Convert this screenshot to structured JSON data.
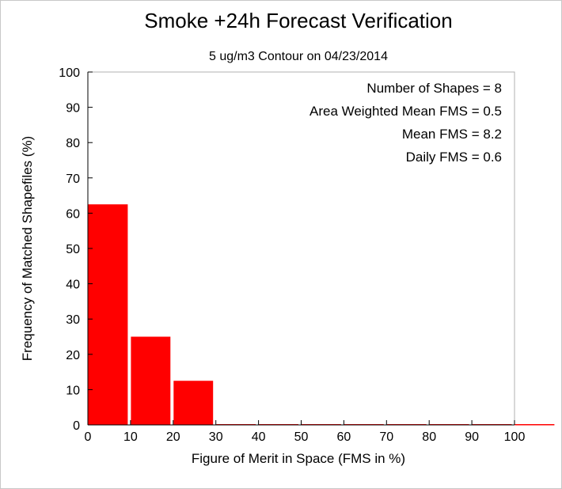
{
  "chart_data": {
    "type": "bar",
    "title": "Smoke +24h Forecast Verification",
    "subtitle": "5 ug/m3 Contour on 04/23/2014",
    "xlabel": "Figure of Merit in Space (FMS in %)",
    "ylabel": "Frequency of Matched Shapefiles (%)",
    "xlim": [
      0,
      100
    ],
    "ylim": [
      0,
      100
    ],
    "xticks": [
      "0",
      "10",
      "20",
      "30",
      "40",
      "50",
      "60",
      "70",
      "80",
      "90",
      "100"
    ],
    "yticks": [
      "0",
      "10",
      "20",
      "30",
      "40",
      "50",
      "60",
      "70",
      "80",
      "90",
      "100"
    ],
    "bin_width": 10,
    "bins": [
      {
        "from": 0,
        "to": 10,
        "value": 62.5
      },
      {
        "from": 10,
        "to": 20,
        "value": 25
      },
      {
        "from": 20,
        "to": 30,
        "value": 12.5
      },
      {
        "from": 30,
        "to": 40,
        "value": 0
      },
      {
        "from": 40,
        "to": 50,
        "value": 0
      },
      {
        "from": 50,
        "to": 60,
        "value": 0
      },
      {
        "from": 60,
        "to": 70,
        "value": 0
      },
      {
        "from": 70,
        "to": 80,
        "value": 0
      },
      {
        "from": 80,
        "to": 90,
        "value": 0
      },
      {
        "from": 90,
        "to": 100,
        "value": 0
      },
      {
        "from": 100,
        "to": 110,
        "value": 0
      }
    ],
    "bar_color": "#ff0000",
    "annotations": [
      "Number of Shapes = 8",
      "Area Weighted Mean FMS = 0.5",
      "Mean FMS = 8.2",
      "Daily FMS = 0.6"
    ],
    "grid": false
  }
}
